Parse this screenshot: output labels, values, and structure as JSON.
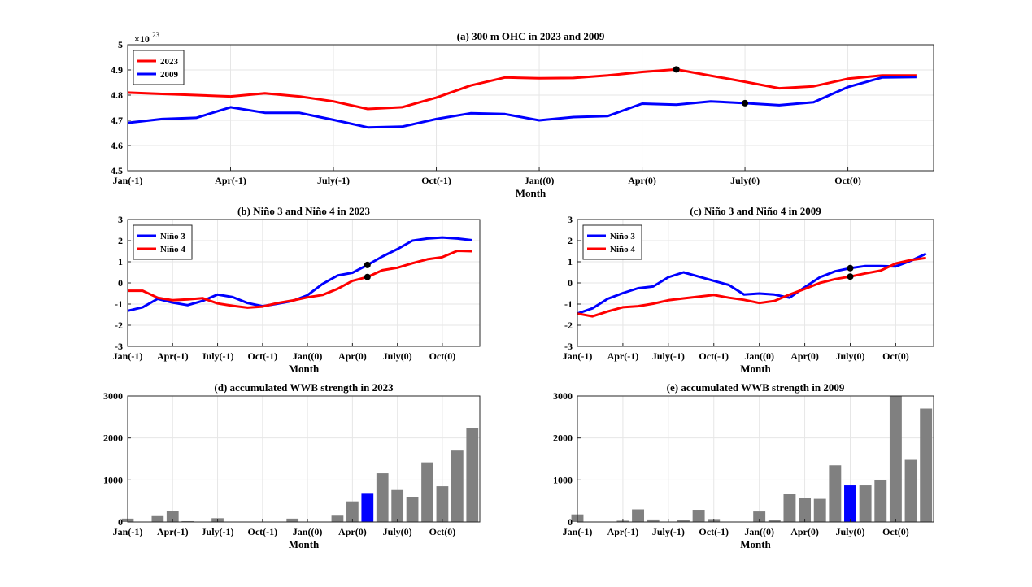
{
  "chart_data": [
    {
      "id": "a",
      "type": "line",
      "title": "(a) 300 m OHC in 2023 and 2009",
      "xlabel": "Month",
      "ylabel": "",
      "y_exponent_label": "×10",
      "y_exponent_power": "23",
      "xtick_labels": [
        "Jan(-1)",
        "Apr(-1)",
        "July(-1)",
        "Oct(-1)",
        "Jan((0)",
        "Apr(0)",
        "July(0)",
        "Oct(0)"
      ],
      "ytick_labels": [
        "4.5",
        "4.6",
        "4.7",
        "4.8",
        "4.9",
        "5"
      ],
      "xlim": [
        1,
        24
      ],
      "ylim": [
        4.5,
        5.0
      ],
      "grid": true,
      "legend": "top-left",
      "series": [
        {
          "name": "2023",
          "color": "#ff0000",
          "x": [
            1,
            2,
            3,
            4,
            5,
            6,
            7,
            8,
            9,
            10,
            11,
            12,
            13,
            14,
            15,
            16,
            17,
            18,
            19,
            20,
            21,
            22,
            23,
            24
          ],
          "values": [
            4.81,
            4.805,
            4.8,
            4.795,
            4.807,
            4.795,
            4.775,
            4.745,
            4.752,
            4.79,
            4.838,
            4.87,
            4.867,
            4.868,
            4.878,
            4.892,
            4.902,
            4.877,
            4.853,
            4.827,
            4.835,
            4.865,
            4.878,
            4.878
          ],
          "marker_x": 17
        },
        {
          "name": "2009",
          "color": "#0000ff",
          "x": [
            1,
            2,
            3,
            4,
            5,
            6,
            7,
            8,
            9,
            10,
            11,
            12,
            13,
            14,
            15,
            16,
            17,
            18,
            19,
            20,
            21,
            22,
            23,
            24
          ],
          "values": [
            4.69,
            4.705,
            4.71,
            4.752,
            4.73,
            4.73,
            4.702,
            4.672,
            4.675,
            4.705,
            4.728,
            4.725,
            4.7,
            4.713,
            4.717,
            4.766,
            4.762,
            4.775,
            4.768,
            4.76,
            4.772,
            4.832,
            4.87,
            4.872
          ],
          "marker_x": 19
        }
      ]
    },
    {
      "id": "b",
      "type": "line",
      "title": "(b) Niño 3 and Niño 4 in 2023",
      "xlabel": "Month",
      "xtick_labels": [
        "Jan(-1)",
        "Apr(-1)",
        "July(-1)",
        "Oct(-1)",
        "Jan((0)",
        "Apr(0)",
        "July(0)",
        "Oct(0)"
      ],
      "ytick_labels": [
        "-3",
        "-2",
        "-1",
        "0",
        "1",
        "2",
        "3"
      ],
      "xlim": [
        1,
        24
      ],
      "ylim": [
        -3,
        3
      ],
      "grid": true,
      "legend": "top-left",
      "series": [
        {
          "name": "Niño 3",
          "color": "#0000ff",
          "x": [
            1,
            2,
            3,
            4,
            5,
            6,
            7,
            8,
            9,
            10,
            11,
            12,
            13,
            14,
            15,
            16,
            17,
            18,
            19,
            20,
            21,
            22,
            23,
            24
          ],
          "values": [
            -1.32,
            -1.15,
            -0.75,
            -0.93,
            -1.05,
            -0.85,
            -0.55,
            -0.67,
            -0.95,
            -1.1,
            -0.98,
            -0.85,
            -0.58,
            -0.05,
            0.35,
            0.48,
            0.85,
            1.25,
            1.6,
            2.0,
            2.1,
            2.15,
            2.1,
            2.02
          ],
          "marker_x": 17
        },
        {
          "name": "Niño 4",
          "color": "#ff0000",
          "x": [
            1,
            2,
            3,
            4,
            5,
            6,
            7,
            8,
            9,
            10,
            11,
            12,
            13,
            14,
            15,
            16,
            17,
            18,
            19,
            20,
            21,
            22,
            23,
            24
          ],
          "values": [
            -0.37,
            -0.37,
            -0.7,
            -0.82,
            -0.78,
            -0.72,
            -0.97,
            -1.08,
            -1.17,
            -1.12,
            -0.95,
            -0.83,
            -0.68,
            -0.57,
            -0.28,
            0.1,
            0.28,
            0.6,
            0.72,
            0.93,
            1.12,
            1.22,
            1.52,
            1.5
          ],
          "marker_x": 17
        }
      ]
    },
    {
      "id": "c",
      "type": "line",
      "title": "(c) Niño 3 and Niño 4 in 2009",
      "xlabel": "Month",
      "xtick_labels": [
        "Jan(-1)",
        "Apr(-1)",
        "July(-1)",
        "Oct(-1)",
        "Jan((0)",
        "Apr(0)",
        "July(0)",
        "Oct(0)"
      ],
      "ytick_labels": [
        "-3",
        "-2",
        "-1",
        "0",
        "1",
        "2",
        "3"
      ],
      "xlim": [
        1,
        24
      ],
      "ylim": [
        -3,
        3
      ],
      "grid": true,
      "legend": "top-left",
      "series": [
        {
          "name": "Niño 3",
          "color": "#0000ff",
          "x": [
            1,
            2,
            3,
            4,
            5,
            6,
            7,
            8,
            9,
            10,
            11,
            12,
            13,
            14,
            15,
            16,
            17,
            18,
            19,
            20,
            21,
            22,
            23,
            24
          ],
          "values": [
            -1.45,
            -1.2,
            -0.75,
            -0.48,
            -0.25,
            -0.17,
            0.27,
            0.5,
            0.3,
            0.1,
            -0.1,
            -0.55,
            -0.5,
            -0.55,
            -0.7,
            -0.2,
            0.27,
            0.55,
            0.7,
            0.8,
            0.8,
            0.78,
            1.05,
            1.38
          ],
          "marker_x": 19
        },
        {
          "name": "Niño 4",
          "color": "#ff0000",
          "x": [
            1,
            2,
            3,
            4,
            5,
            6,
            7,
            8,
            9,
            10,
            11,
            12,
            13,
            14,
            15,
            16,
            17,
            18,
            19,
            20,
            21,
            22,
            23,
            24
          ],
          "values": [
            -1.45,
            -1.58,
            -1.35,
            -1.15,
            -1.1,
            -0.98,
            -0.82,
            -0.73,
            -0.65,
            -0.57,
            -0.7,
            -0.8,
            -0.95,
            -0.85,
            -0.55,
            -0.28,
            0.0,
            0.18,
            0.3,
            0.45,
            0.58,
            0.92,
            1.08,
            1.18
          ],
          "marker_x": 19
        }
      ]
    },
    {
      "id": "d",
      "type": "bar",
      "title": "(d) accumulated WWB strength in 2023",
      "xlabel": "Month",
      "xtick_labels": [
        "Jan(-1)",
        "Apr(-1)",
        "July(-1)",
        "Oct(-1)",
        "Jan((0)",
        "Apr(0)",
        "July(0)",
        "Oct(0)"
      ],
      "ytick_labels": [
        "0",
        "1000",
        "2000",
        "3000"
      ],
      "xlim": [
        1,
        24
      ],
      "ylim": [
        0,
        3000
      ],
      "grid": true,
      "highlight_x": 17,
      "bar_color": "#808080",
      "highlight_color": "#0000ff",
      "x": [
        1,
        2,
        3,
        4,
        5,
        6,
        7,
        8,
        9,
        10,
        11,
        12,
        13,
        14,
        15,
        16,
        17,
        18,
        19,
        20,
        21,
        22,
        23,
        24
      ],
      "values": [
        80,
        0,
        140,
        260,
        20,
        0,
        90,
        0,
        0,
        0,
        0,
        80,
        0,
        0,
        150,
        490,
        690,
        1160,
        760,
        600,
        1420,
        850,
        1700,
        2240
      ]
    },
    {
      "id": "e",
      "type": "bar",
      "title": "(e) accumulated WWB strength in 2009",
      "xlabel": "Month",
      "xtick_labels": [
        "Jan(-1)",
        "Apr(-1)",
        "July(-1)",
        "Oct(-1)",
        "Jan((0)",
        "Apr(0)",
        "July(0)",
        "Oct(0)"
      ],
      "ytick_labels": [
        "0",
        "1000",
        "2000",
        "3000"
      ],
      "xlim": [
        1,
        24
      ],
      "ylim": [
        0,
        3000
      ],
      "grid": true,
      "highlight_x": 19,
      "bar_color": "#808080",
      "highlight_color": "#0000ff",
      "x": [
        1,
        2,
        3,
        4,
        5,
        6,
        7,
        8,
        9,
        10,
        11,
        12,
        13,
        14,
        15,
        16,
        17,
        18,
        19,
        20,
        21,
        22,
        23,
        24
      ],
      "values": [
        180,
        0,
        0,
        30,
        300,
        60,
        0,
        40,
        290,
        70,
        0,
        0,
        250,
        40,
        670,
        580,
        550,
        1350,
        870,
        870,
        1000,
        3000,
        1480,
        2700
      ]
    }
  ]
}
